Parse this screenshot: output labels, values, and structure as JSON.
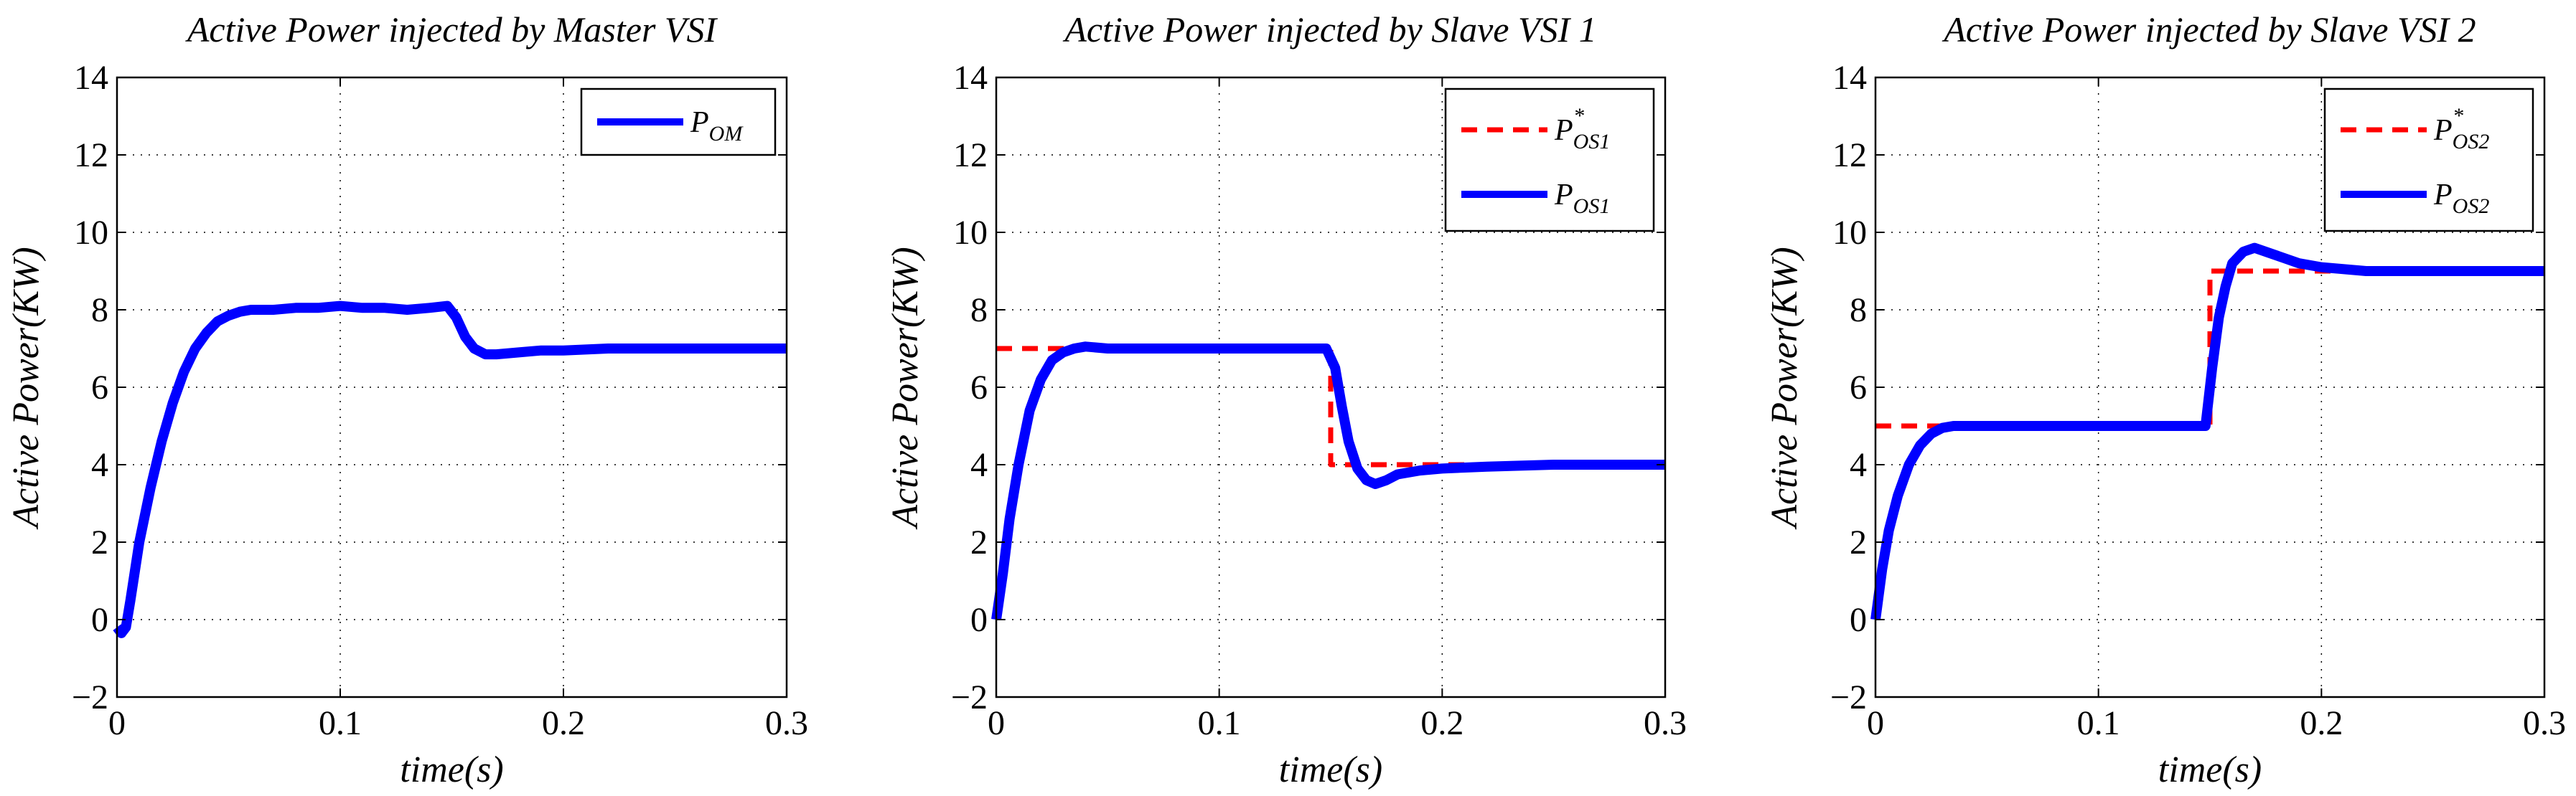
{
  "chart_data": [
    {
      "type": "line",
      "title": "Active Power injected by Master VSI",
      "xlabel": "time(s)",
      "ylabel": "Active Power(KW)",
      "xlim": [
        0,
        0.3
      ],
      "ylim": [
        -2,
        14
      ],
      "xticks": [
        0,
        0.1,
        0.2,
        0.3
      ],
      "xtick_labels": [
        "0",
        "0.1",
        "0.2",
        "0.3"
      ],
      "yticks": [
        -2,
        0,
        2,
        4,
        6,
        8,
        10,
        12,
        14
      ],
      "ytick_labels": [
        "−2",
        "0",
        "2",
        "4",
        "6",
        "8",
        "10",
        "12",
        "14"
      ],
      "grid": true,
      "legend_position": "top-right",
      "series": [
        {
          "legend_main": "P",
          "legend_sub": "OM",
          "legend_sup": "",
          "color": "#0000ff",
          "style": "solid",
          "x": [
            0,
            0.002,
            0.004,
            0.006,
            0.01,
            0.015,
            0.02,
            0.025,
            0.03,
            0.035,
            0.04,
            0.045,
            0.05,
            0.055,
            0.06,
            0.07,
            0.08,
            0.09,
            0.1,
            0.11,
            0.12,
            0.13,
            0.14,
            0.148,
            0.152,
            0.156,
            0.16,
            0.165,
            0.17,
            0.18,
            0.19,
            0.2,
            0.22,
            0.25,
            0.3
          ],
          "y": [
            -0.2,
            -0.35,
            -0.2,
            0.5,
            2.0,
            3.4,
            4.6,
            5.6,
            6.4,
            7.0,
            7.4,
            7.7,
            7.85,
            7.95,
            8.0,
            8.0,
            8.05,
            8.05,
            8.1,
            8.05,
            8.05,
            8.0,
            8.05,
            8.1,
            7.8,
            7.3,
            7.0,
            6.85,
            6.85,
            6.9,
            6.95,
            6.95,
            7.0,
            7.0,
            7.0
          ]
        }
      ]
    },
    {
      "type": "line",
      "title": "Active Power injected by Slave VSI 1",
      "xlabel": "time(s)",
      "ylabel": "Active Power(KW)",
      "xlim": [
        0,
        0.3
      ],
      "ylim": [
        -2,
        14
      ],
      "xticks": [
        0,
        0.1,
        0.2,
        0.3
      ],
      "xtick_labels": [
        "0",
        "0.1",
        "0.2",
        "0.3"
      ],
      "yticks": [
        -2,
        0,
        2,
        4,
        6,
        8,
        10,
        12,
        14
      ],
      "ytick_labels": [
        "−2",
        "0",
        "2",
        "4",
        "6",
        "8",
        "10",
        "12",
        "14"
      ],
      "grid": true,
      "legend_position": "top-right",
      "series": [
        {
          "legend_main": "P",
          "legend_sub": "OS1",
          "legend_sup": "*",
          "color": "#ff0000",
          "style": "dashed",
          "x": [
            0,
            0.15,
            0.15,
            0.3
          ],
          "y": [
            7,
            7,
            4,
            4
          ]
        },
        {
          "legend_main": "P",
          "legend_sub": "OS1",
          "legend_sup": "",
          "color": "#0000ff",
          "style": "solid",
          "x": [
            0,
            0.003,
            0.006,
            0.01,
            0.015,
            0.02,
            0.025,
            0.03,
            0.035,
            0.04,
            0.05,
            0.06,
            0.08,
            0.1,
            0.12,
            0.14,
            0.148,
            0.152,
            0.155,
            0.158,
            0.162,
            0.166,
            0.17,
            0.175,
            0.18,
            0.19,
            0.2,
            0.22,
            0.25,
            0.3
          ],
          "y": [
            0,
            1.2,
            2.6,
            4.0,
            5.4,
            6.2,
            6.7,
            6.9,
            7.0,
            7.05,
            7.0,
            7.0,
            7.0,
            7.0,
            7.0,
            7.0,
            7.0,
            6.5,
            5.5,
            4.6,
            3.9,
            3.6,
            3.5,
            3.6,
            3.75,
            3.85,
            3.9,
            3.95,
            4.0,
            4.0
          ]
        }
      ]
    },
    {
      "type": "line",
      "title": "Active Power injected by Slave VSI 2",
      "xlabel": "time(s)",
      "ylabel": "Active Power(KW)",
      "xlim": [
        0,
        0.3
      ],
      "ylim": [
        -2,
        14
      ],
      "xticks": [
        0,
        0.1,
        0.2,
        0.3
      ],
      "xtick_labels": [
        "0",
        "0.1",
        "0.2",
        "0.3"
      ],
      "yticks": [
        -2,
        0,
        2,
        4,
        6,
        8,
        10,
        12,
        14
      ],
      "ytick_labels": [
        "−2",
        "0",
        "2",
        "4",
        "6",
        "8",
        "10",
        "12",
        "14"
      ],
      "grid": true,
      "legend_position": "top-right",
      "series": [
        {
          "legend_main": "P",
          "legend_sub": "OS2",
          "legend_sup": "*",
          "color": "#ff0000",
          "style": "dashed",
          "x": [
            0,
            0.15,
            0.15,
            0.3
          ],
          "y": [
            5,
            5,
            9,
            9
          ]
        },
        {
          "legend_main": "P",
          "legend_sub": "OS2",
          "legend_sup": "",
          "color": "#0000ff",
          "style": "solid",
          "x": [
            0,
            0.003,
            0.006,
            0.01,
            0.015,
            0.02,
            0.025,
            0.03,
            0.035,
            0.04,
            0.05,
            0.06,
            0.08,
            0.1,
            0.12,
            0.14,
            0.148,
            0.151,
            0.154,
            0.157,
            0.16,
            0.165,
            0.17,
            0.18,
            0.19,
            0.2,
            0.22,
            0.25,
            0.3
          ],
          "y": [
            0,
            1.3,
            2.3,
            3.2,
            4.0,
            4.5,
            4.8,
            4.95,
            5.0,
            5.0,
            5.0,
            5.0,
            5.0,
            5.0,
            5.0,
            5.0,
            5.0,
            6.5,
            7.8,
            8.6,
            9.2,
            9.5,
            9.6,
            9.4,
            9.2,
            9.1,
            9.0,
            9.0,
            9.0
          ]
        }
      ]
    }
  ]
}
